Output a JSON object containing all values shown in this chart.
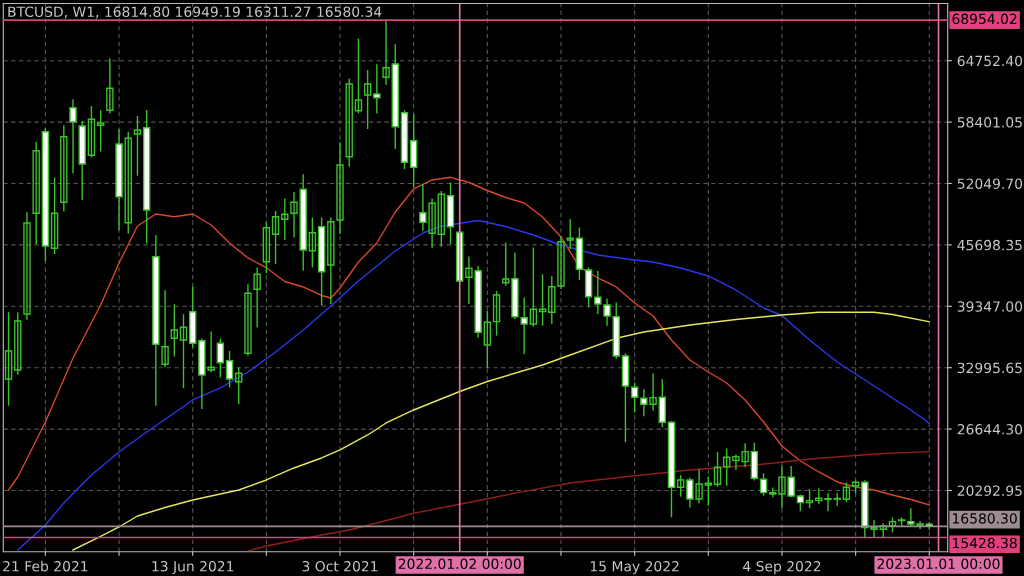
{
  "chart_data": {
    "type": "candlestick",
    "title": "BTCUSD, W1, 16814.80 16949.19 16311.27 16580.34",
    "color": "#3cc22a",
    "x": [
      "2021-01-24",
      "2021-01-31",
      "2021-02-07",
      "2021-02-14",
      "2021-02-21",
      "2021-02-28",
      "2021-03-07",
      "2021-03-14",
      "2021-03-21",
      "2021-03-28",
      "2021-04-04",
      "2021-04-11",
      "2021-04-18",
      "2021-04-25",
      "2021-05-02",
      "2021-05-09",
      "2021-05-16",
      "2021-05-23",
      "2021-05-30",
      "2021-06-06",
      "2021-06-13",
      "2021-06-20",
      "2021-06-27",
      "2021-07-04",
      "2021-07-11",
      "2021-07-18",
      "2021-07-25",
      "2021-08-01",
      "2021-08-08",
      "2021-08-15",
      "2021-08-22",
      "2021-08-29",
      "2021-09-05",
      "2021-09-12",
      "2021-09-19",
      "2021-09-26",
      "2021-10-03",
      "2021-10-10",
      "2021-10-17",
      "2021-10-24",
      "2021-10-31",
      "2021-11-07",
      "2021-11-14",
      "2021-11-21",
      "2021-11-28",
      "2021-12-05",
      "2021-12-12",
      "2021-12-19",
      "2021-12-26",
      "2022-01-02",
      "2022-01-09",
      "2022-01-16",
      "2022-01-23",
      "2022-01-30",
      "2022-02-06",
      "2022-02-13",
      "2022-02-20",
      "2022-02-27",
      "2022-03-06",
      "2022-03-13",
      "2022-03-20",
      "2022-03-27",
      "2022-04-03",
      "2022-04-10",
      "2022-04-17",
      "2022-04-24",
      "2022-05-01",
      "2022-05-08",
      "2022-05-15",
      "2022-05-22",
      "2022-05-29",
      "2022-06-05",
      "2022-06-12",
      "2022-06-19",
      "2022-06-26",
      "2022-07-03",
      "2022-07-10",
      "2022-07-17",
      "2022-07-24",
      "2022-07-31",
      "2022-08-07",
      "2022-08-14",
      "2022-08-21",
      "2022-08-28",
      "2022-09-04",
      "2022-09-11",
      "2022-09-18",
      "2022-09-25",
      "2022-10-02",
      "2022-10-09",
      "2022-10-16",
      "2022-10-23",
      "2022-10-30",
      "2022-11-06",
      "2022-11-13",
      "2022-11-20",
      "2022-11-27",
      "2022-12-04",
      "2022-12-11",
      "2022-12-18",
      "2022-12-25"
    ],
    "ohlc": [
      [
        31827,
        38654,
        29138,
        34724
      ],
      [
        32758,
        38654,
        32344,
        37827
      ],
      [
        38551,
        48998,
        38034,
        47964
      ],
      [
        48967,
        56270,
        45865,
        55443
      ],
      [
        57408,
        57687,
        44137,
        45585
      ],
      [
        45347,
        52587,
        44830,
        48967
      ],
      [
        50105,
        57998,
        49236,
        56891
      ],
      [
        59890,
        60687,
        53167,
        58411
      ],
      [
        57998,
        58442,
        50415,
        54067
      ],
      [
        54967,
        59994,
        54800,
        58691
      ],
      [
        58070,
        59549,
        55443,
        58308
      ],
      [
        59622,
        64897,
        59373,
        61897
      ],
      [
        56136,
        57584,
        47312,
        50684
      ],
      [
        47995,
        57305,
        46960,
        56725
      ],
      [
        57170,
        58960,
        52929,
        57584
      ],
      [
        57822,
        59580,
        45926,
        49309
      ],
      [
        44478,
        46619,
        29138,
        35416
      ],
      [
        33347,
        40930,
        33100,
        35168
      ],
      [
        36038,
        39482,
        34237,
        36896
      ],
      [
        35861,
        38447,
        30968,
        37175
      ],
      [
        38789,
        41312,
        35168,
        35520
      ],
      [
        35789,
        35950,
        28796,
        32241
      ],
      [
        32758,
        36657,
        32600,
        33038
      ],
      [
        35520,
        35934,
        32065,
        33513
      ],
      [
        33720,
        34651,
        31030,
        31827
      ],
      [
        31548,
        32934,
        29314,
        32417
      ],
      [
        34485,
        41551,
        34300,
        40692
      ],
      [
        41105,
        43277,
        37237,
        42658
      ],
      [
        43961,
        47964,
        42865,
        47478
      ],
      [
        46795,
        49133,
        43795,
        48616
      ],
      [
        48346,
        50415,
        46277,
        48863
      ],
      [
        48967,
        51098,
        46546,
        50105
      ],
      [
        51450,
        52929,
        43102,
        45171
      ],
      [
        45098,
        48450,
        43443,
        46960
      ],
      [
        47581,
        48450,
        39482,
        42927
      ],
      [
        43619,
        48450,
        39657,
        48099
      ],
      [
        48274,
        56208,
        46898,
        53963
      ],
      [
        54822,
        62828,
        53860,
        62342
      ],
      [
        59580,
        66966,
        59400,
        60687
      ],
      [
        61204,
        63718,
        57759,
        62342
      ],
      [
        61308,
        64307,
        59373,
        60925
      ],
      [
        63035,
        68954.02,
        62342,
        64028
      ],
      [
        64411,
        66376,
        55691,
        57925
      ],
      [
        59373,
        59550,
        53622,
        54243
      ],
      [
        56477,
        59135,
        51719,
        53725
      ],
      [
        49029,
        51895,
        47240,
        48036
      ],
      [
        46898,
        50415,
        45450,
        50001
      ],
      [
        46795,
        51202,
        45585,
        50933
      ],
      [
        50788,
        52070,
        45865,
        47581
      ],
      [
        47002,
        47300,
        41700,
        41965
      ],
      [
        42348,
        44416,
        39657,
        43277
      ],
      [
        43030,
        43443,
        36203,
        36657
      ],
      [
        35344,
        38789,
        33038,
        37692
      ],
      [
        37755,
        40858,
        36379,
        40516
      ],
      [
        41789,
        45864,
        41551,
        42171
      ],
      [
        42192,
        44830,
        38106,
        38272
      ],
      [
        38168,
        40175,
        34485,
        37516
      ],
      [
        37516,
        45347,
        37300,
        39037
      ],
      [
        38790,
        42585,
        37413,
        39040
      ],
      [
        38727,
        42410,
        37588,
        41375
      ],
      [
        41447,
        46546,
        41200,
        46029
      ],
      [
        46205,
        48274,
        45347,
        46381
      ],
      [
        46381,
        47415,
        42140,
        43174
      ],
      [
        43102,
        43300,
        39306,
        40340
      ],
      [
        40278,
        42927,
        38623,
        39585
      ],
      [
        39482,
        40071,
        37413,
        38344
      ],
      [
        38272,
        39657,
        34000,
        34206
      ],
      [
        34206,
        34400,
        25341,
        31103
      ],
      [
        30968,
        31383,
        28444,
        29933
      ],
      [
        29830,
        30689,
        28031,
        29209
      ],
      [
        29209,
        32313,
        28621,
        29893
      ],
      [
        29933,
        31724,
        26894,
        27346
      ],
      [
        27346,
        27400,
        17583,
        20625
      ],
      [
        20625,
        21794,
        19725,
        21380
      ],
      [
        21380,
        21553,
        18617,
        19414
      ],
      [
        19414,
        22414,
        19035,
        20966
      ],
      [
        20862,
        21656,
        18794,
        21035
      ],
      [
        20935,
        24205,
        20759,
        22693
      ],
      [
        22756,
        24554,
        20862,
        23726
      ],
      [
        23376,
        23950,
        22486,
        23790
      ],
      [
        23273,
        25104,
        22756,
        24308
      ],
      [
        24308,
        25176,
        21400,
        21556
      ],
      [
        21452,
        22001,
        19828,
        20066
      ],
      [
        19931,
        20521,
        19656,
        20066
      ],
      [
        19931,
        22756,
        18556,
        21660
      ],
      [
        21660,
        22756,
        19656,
        19725
      ],
      [
        19725,
        19800,
        18204,
        19032
      ],
      [
        19032,
        20345,
        18514,
        19239
      ],
      [
        19239,
        20449,
        18965,
        19483
      ],
      [
        19380,
        19932,
        18204,
        19440
      ],
      [
        19400,
        19932,
        18794,
        19480
      ],
      [
        19383,
        21038,
        19138,
        20624
      ],
      [
        20759,
        21276,
        20066,
        21142
      ],
      [
        21142,
        21276,
        15428.38,
        16446
      ],
      [
        16281,
        17169,
        15514,
        16446
      ],
      [
        16281,
        16829,
        15514,
        16622
      ],
      [
        16622,
        17414,
        16036,
        17067
      ],
      [
        17170,
        17414,
        16726,
        17242
      ],
      [
        17067,
        18380,
        16622,
        16830
      ],
      [
        16830,
        17067,
        16381,
        16727
      ],
      [
        16814.8,
        16949.19,
        16311.27,
        16580.34
      ]
    ],
    "series": [
      {
        "type": "line",
        "color": "#d8462c",
        "x": [
          "2021-01-24",
          "2021-01-31",
          "2021-02-21",
          "2021-03-14",
          "2021-04-04",
          "2021-04-18",
          "2021-05-02",
          "2021-05-16",
          "2021-05-30",
          "2021-06-13",
          "2021-06-27",
          "2021-07-11",
          "2021-07-25",
          "2021-08-08",
          "2021-08-22",
          "2021-09-05",
          "2021-09-19",
          "2021-09-26",
          "2021-10-03",
          "2021-10-17",
          "2021-10-31",
          "2021-11-14",
          "2021-11-28",
          "2021-12-12",
          "2021-12-26",
          "2022-01-09",
          "2022-01-23",
          "2022-02-06",
          "2022-02-20",
          "2022-03-06",
          "2022-03-20",
          "2022-04-03",
          "2022-04-17",
          "2022-05-01",
          "2022-05-15",
          "2022-05-29",
          "2022-06-12",
          "2022-06-26",
          "2022-07-10",
          "2022-07-24",
          "2022-08-07",
          "2022-08-21",
          "2022-09-04",
          "2022-09-18",
          "2022-10-02",
          "2022-10-16",
          "2022-10-30",
          "2022-11-13",
          "2022-11-27",
          "2022-12-11",
          "2022-12-25"
        ],
        "values": [
          20345,
          21690,
          27379,
          34000,
          39482,
          43826,
          47654,
          48895,
          48616,
          48895,
          47757,
          45895,
          44344,
          43340,
          41913,
          41344,
          40465,
          40206,
          41240,
          43930,
          45895,
          49102,
          51481,
          52412,
          52691,
          52153,
          51326,
          50602,
          50033,
          48585,
          46516,
          43413,
          42275,
          41344,
          39689,
          38344,
          35861,
          33792,
          32551,
          31413,
          29655,
          27379,
          24896,
          23344,
          22207,
          21173,
          20655,
          20345,
          19828,
          19363,
          18794
        ]
      },
      {
        "type": "line",
        "color": "#2b38e8",
        "x": [
          "2021-01-31",
          "2021-02-21",
          "2021-03-07",
          "2021-03-28",
          "2021-04-18",
          "2021-05-09",
          "2021-05-30",
          "2021-06-13",
          "2021-07-04",
          "2021-07-25",
          "2021-08-15",
          "2021-09-05",
          "2021-09-26",
          "2021-10-17",
          "2021-10-31",
          "2021-11-14",
          "2021-12-05",
          "2021-12-19",
          "2022-01-16",
          "2022-02-06",
          "2022-02-27",
          "2022-03-20",
          "2022-04-17",
          "2022-05-15",
          "2022-05-29",
          "2022-06-19",
          "2022-07-10",
          "2022-07-31",
          "2022-08-21",
          "2022-09-04",
          "2022-09-25",
          "2022-10-16",
          "2022-11-06",
          "2022-11-27",
          "2022-12-11",
          "2022-12-25"
        ],
        "values": [
          14139,
          16725,
          19000,
          21897,
          24276,
          26345,
          28310,
          29655,
          30896,
          32551,
          34620,
          36896,
          39379,
          41965,
          43516,
          45067,
          46929,
          47633,
          48222,
          47602,
          46723,
          45688,
          44654,
          44137,
          43930,
          43309,
          42482,
          41033,
          39172,
          38396,
          35861,
          33586,
          31724,
          29862,
          28620,
          27245
        ]
      },
      {
        "type": "line",
        "color": "#e6e65a",
        "x": [
          "2021-03-14",
          "2021-04-04",
          "2021-04-18",
          "2021-05-02",
          "2021-05-23",
          "2021-06-13",
          "2021-07-18",
          "2021-08-08",
          "2021-08-29",
          "2021-09-19",
          "2021-10-03",
          "2021-10-24",
          "2021-11-07",
          "2021-11-28",
          "2022-01-02",
          "2022-01-23",
          "2022-03-06",
          "2022-03-27",
          "2022-05-01",
          "2022-05-22",
          "2022-06-26",
          "2022-07-31",
          "2022-09-04",
          "2022-10-02",
          "2022-11-13",
          "2022-11-27",
          "2022-12-25"
        ],
        "values": [
          14139,
          15535,
          16518,
          17656,
          18535,
          19311,
          20345,
          21380,
          22620,
          23655,
          24483,
          26034,
          27275,
          28620,
          30534,
          31568,
          33275,
          34310,
          36036,
          36688,
          37413,
          37982,
          38447,
          38727,
          38727,
          38500,
          37754
        ]
      },
      {
        "type": "line",
        "color": "#8e1f1c",
        "x": [
          "2021-07-25",
          "2021-08-08",
          "2021-09-19",
          "2021-10-10",
          "2021-10-31",
          "2021-11-28",
          "2022-01-02",
          "2022-02-13",
          "2022-03-27",
          "2022-05-08",
          "2022-06-26",
          "2022-08-14",
          "2022-10-02",
          "2022-11-20",
          "2022-12-25"
        ],
        "values": [
          14035,
          14553,
          15690,
          16208,
          16932,
          17935,
          18866,
          20014,
          21069,
          21711,
          22414,
          22931,
          23624,
          24120,
          24307
        ]
      }
    ],
    "xlim": [
      "2021-01-20",
      "2023-01-08"
    ],
    "xticks": [
      {
        "value": "2021-02-21",
        "label": "21 Feb 2021"
      },
      {
        "value": "2021-04-18",
        "label": null
      },
      {
        "value": "2021-06-13",
        "label": "13 Jun 2021"
      },
      {
        "value": "2021-08-08",
        "label": null
      },
      {
        "value": "2021-10-03",
        "label": "3 Oct 2021"
      },
      {
        "value": "2021-11-28",
        "label": null
      },
      {
        "value": "2022-01-23",
        "label": null
      },
      {
        "value": "2022-03-20",
        "label": null
      },
      {
        "value": "2022-05-15",
        "label": "15 May 2022"
      },
      {
        "value": "2022-07-10",
        "label": null
      },
      {
        "value": "2022-09-04",
        "label": "4 Sep 2022"
      },
      {
        "value": "2022-10-30",
        "label": null
      },
      {
        "value": "2022-12-25",
        "label": null
      }
    ],
    "ylim": [
      13960,
      70670
    ],
    "yticks": [
      {
        "value": 20292.95,
        "label": "20292.95"
      },
      {
        "value": 26644.3,
        "label": "26644.30"
      },
      {
        "value": 32995.65,
        "label": "32995.65"
      },
      {
        "value": 39347.0,
        "label": "39347.00"
      },
      {
        "value": 45698.35,
        "label": "45698.35"
      },
      {
        "value": 52049.7,
        "label": "52049.70"
      },
      {
        "value": 58401.05,
        "label": "58401.05"
      },
      {
        "value": 64752.4,
        "label": "64752.40"
      }
    ],
    "ref_lines": [
      {
        "axis": "y",
        "value": 68954.02,
        "label": "68954.02",
        "color": "#e0407e"
      },
      {
        "axis": "y",
        "value": 15428.38,
        "label": "15428.38",
        "color": "#e0407e"
      },
      {
        "axis": "y",
        "value": 16580.3,
        "label": "16580.30",
        "color": "#9c8c90"
      },
      {
        "axis": "x",
        "value": "2022-01-02",
        "label": "2022.01.02 00:00",
        "color": "#e070a8"
      },
      {
        "axis": "x",
        "value": "2023-01-01",
        "label": "2023.01.01 00:00",
        "color": "#e070a8"
      }
    ],
    "grid": true
  }
}
